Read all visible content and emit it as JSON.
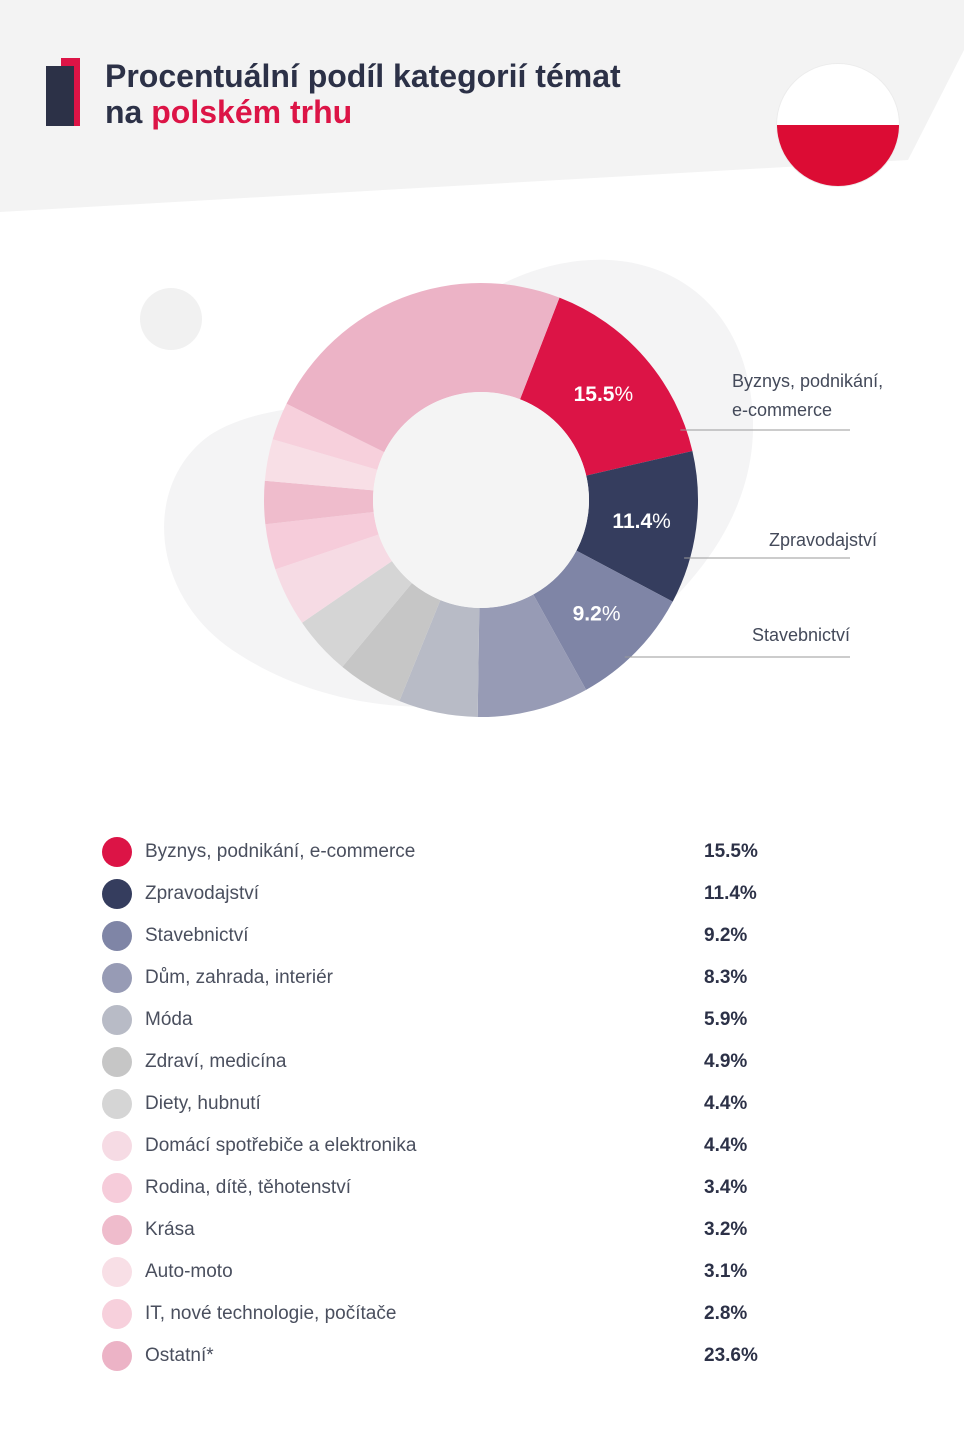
{
  "header": {
    "title_line1": "Procentuální podíl kategorií témat",
    "title_line2_prefix": "na ",
    "title_line2_accent": "polském trhu",
    "flag": "poland-flag-icon"
  },
  "colors": {
    "accent": "#dc1446",
    "navy": "#2c3147",
    "header_bg": "#f3f3f3"
  },
  "chart_data": {
    "type": "pie",
    "variant": "donut",
    "start": "top",
    "direction": "clockwise",
    "series": [
      {
        "name": "Byznys, podnikání, e-commerce",
        "value": 15.5,
        "display": "15.5%",
        "color": "#dc1446",
        "slice_label": true,
        "callout": [
          "Byznys, podnikání,",
          "e-commerce"
        ]
      },
      {
        "name": "Zpravodajství",
        "value": 11.4,
        "display": "11.4%",
        "color": "#353d5e",
        "slice_label": true,
        "callout": [
          "Zpravodajství"
        ]
      },
      {
        "name": "Stavebnictví",
        "value": 9.2,
        "display": "9.2%",
        "color": "#7f85a6",
        "slice_label": true,
        "callout": [
          "Stavebnictví"
        ]
      },
      {
        "name": "Dům, zahrada, interiér",
        "value": 8.3,
        "display": "8.3%",
        "color": "#979bb5",
        "slice_label": false
      },
      {
        "name": "Móda",
        "value": 5.9,
        "display": "5.9%",
        "color": "#b8bbc6",
        "slice_label": false
      },
      {
        "name": "Zdraví, medicína",
        "value": 4.9,
        "display": "4.9%",
        "color": "#c6c6c6",
        "slice_label": false
      },
      {
        "name": "Diety, hubnutí",
        "value": 4.4,
        "display": "4.4%",
        "color": "#d5d5d5",
        "slice_label": false
      },
      {
        "name": "Domácí spotřebiče a elektronika",
        "value": 4.4,
        "display": "4.4%",
        "color": "#f6dbe4",
        "slice_label": false
      },
      {
        "name": "Rodina, dítě, těhotenství",
        "value": 3.4,
        "display": "3.4%",
        "color": "#f6ccda",
        "slice_label": false
      },
      {
        "name": "Krása",
        "value": 3.2,
        "display": "3.2%",
        "color": "#efbccc",
        "slice_label": false
      },
      {
        "name": "Auto-moto",
        "value": 3.1,
        "display": "3.1%",
        "color": "#f8dfe6",
        "slice_label": false
      },
      {
        "name": "IT, nové technologie, počítače",
        "value": 2.8,
        "display": "2.8%",
        "color": "#f7d0dc",
        "slice_label": false
      },
      {
        "name": "Ostatní*",
        "value": 23.6,
        "display": "23.6%",
        "color": "#ecb3c6",
        "slice_label": false
      }
    ]
  }
}
